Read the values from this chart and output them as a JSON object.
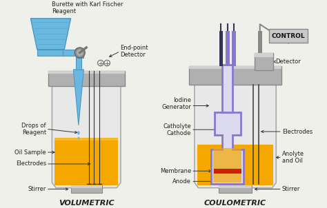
{
  "bg_color": "#f0f0eb",
  "title_vol": "VOLUMETRIC",
  "title_coul": "COULOMETRIC",
  "label_burette": "Burette with Karl Fischer\nReagent",
  "label_endpoint": "End-point\nDetector",
  "label_drops": "Drops of\nReagent",
  "label_oilsample": "Oil Sample",
  "label_electrodes_vol": "Electrodes",
  "label_stirrer_vol": "Stirrer",
  "label_control": "CONTROL",
  "label_detector": "Detector",
  "label_iodine": "Iodine\nGenerator",
  "label_catholyte": "Catholyte\nCathode",
  "label_membrane": "Membrane",
  "label_anode": "Anode",
  "label_electrodes_coul": "Electrodes",
  "label_anolyte": "Anolyte\nand Oil",
  "label_stirrer_coul": "Stirrer",
  "burette_color": "#6ab8e0",
  "burette_dark": "#4a98c0",
  "liquid_color": "#f5a800",
  "liquid_dark": "#d08800",
  "vessel_body_color": "#e8e8e8",
  "vessel_outline": "#aaaaaa",
  "lid_color": "#b0b0b0",
  "lid_dark": "#888888",
  "electrode_color": "#333333",
  "inner_vessel_color": "#8878cc",
  "inner_vessel_fill": "#dcdaee",
  "red_membrane_color": "#cc2200",
  "control_box_color": "#c0c0c0",
  "drop_color": "#6ab8e0",
  "text_color": "#222222",
  "arrow_color": "#333333",
  "white": "#ffffff",
  "tube_color": "#555577"
}
